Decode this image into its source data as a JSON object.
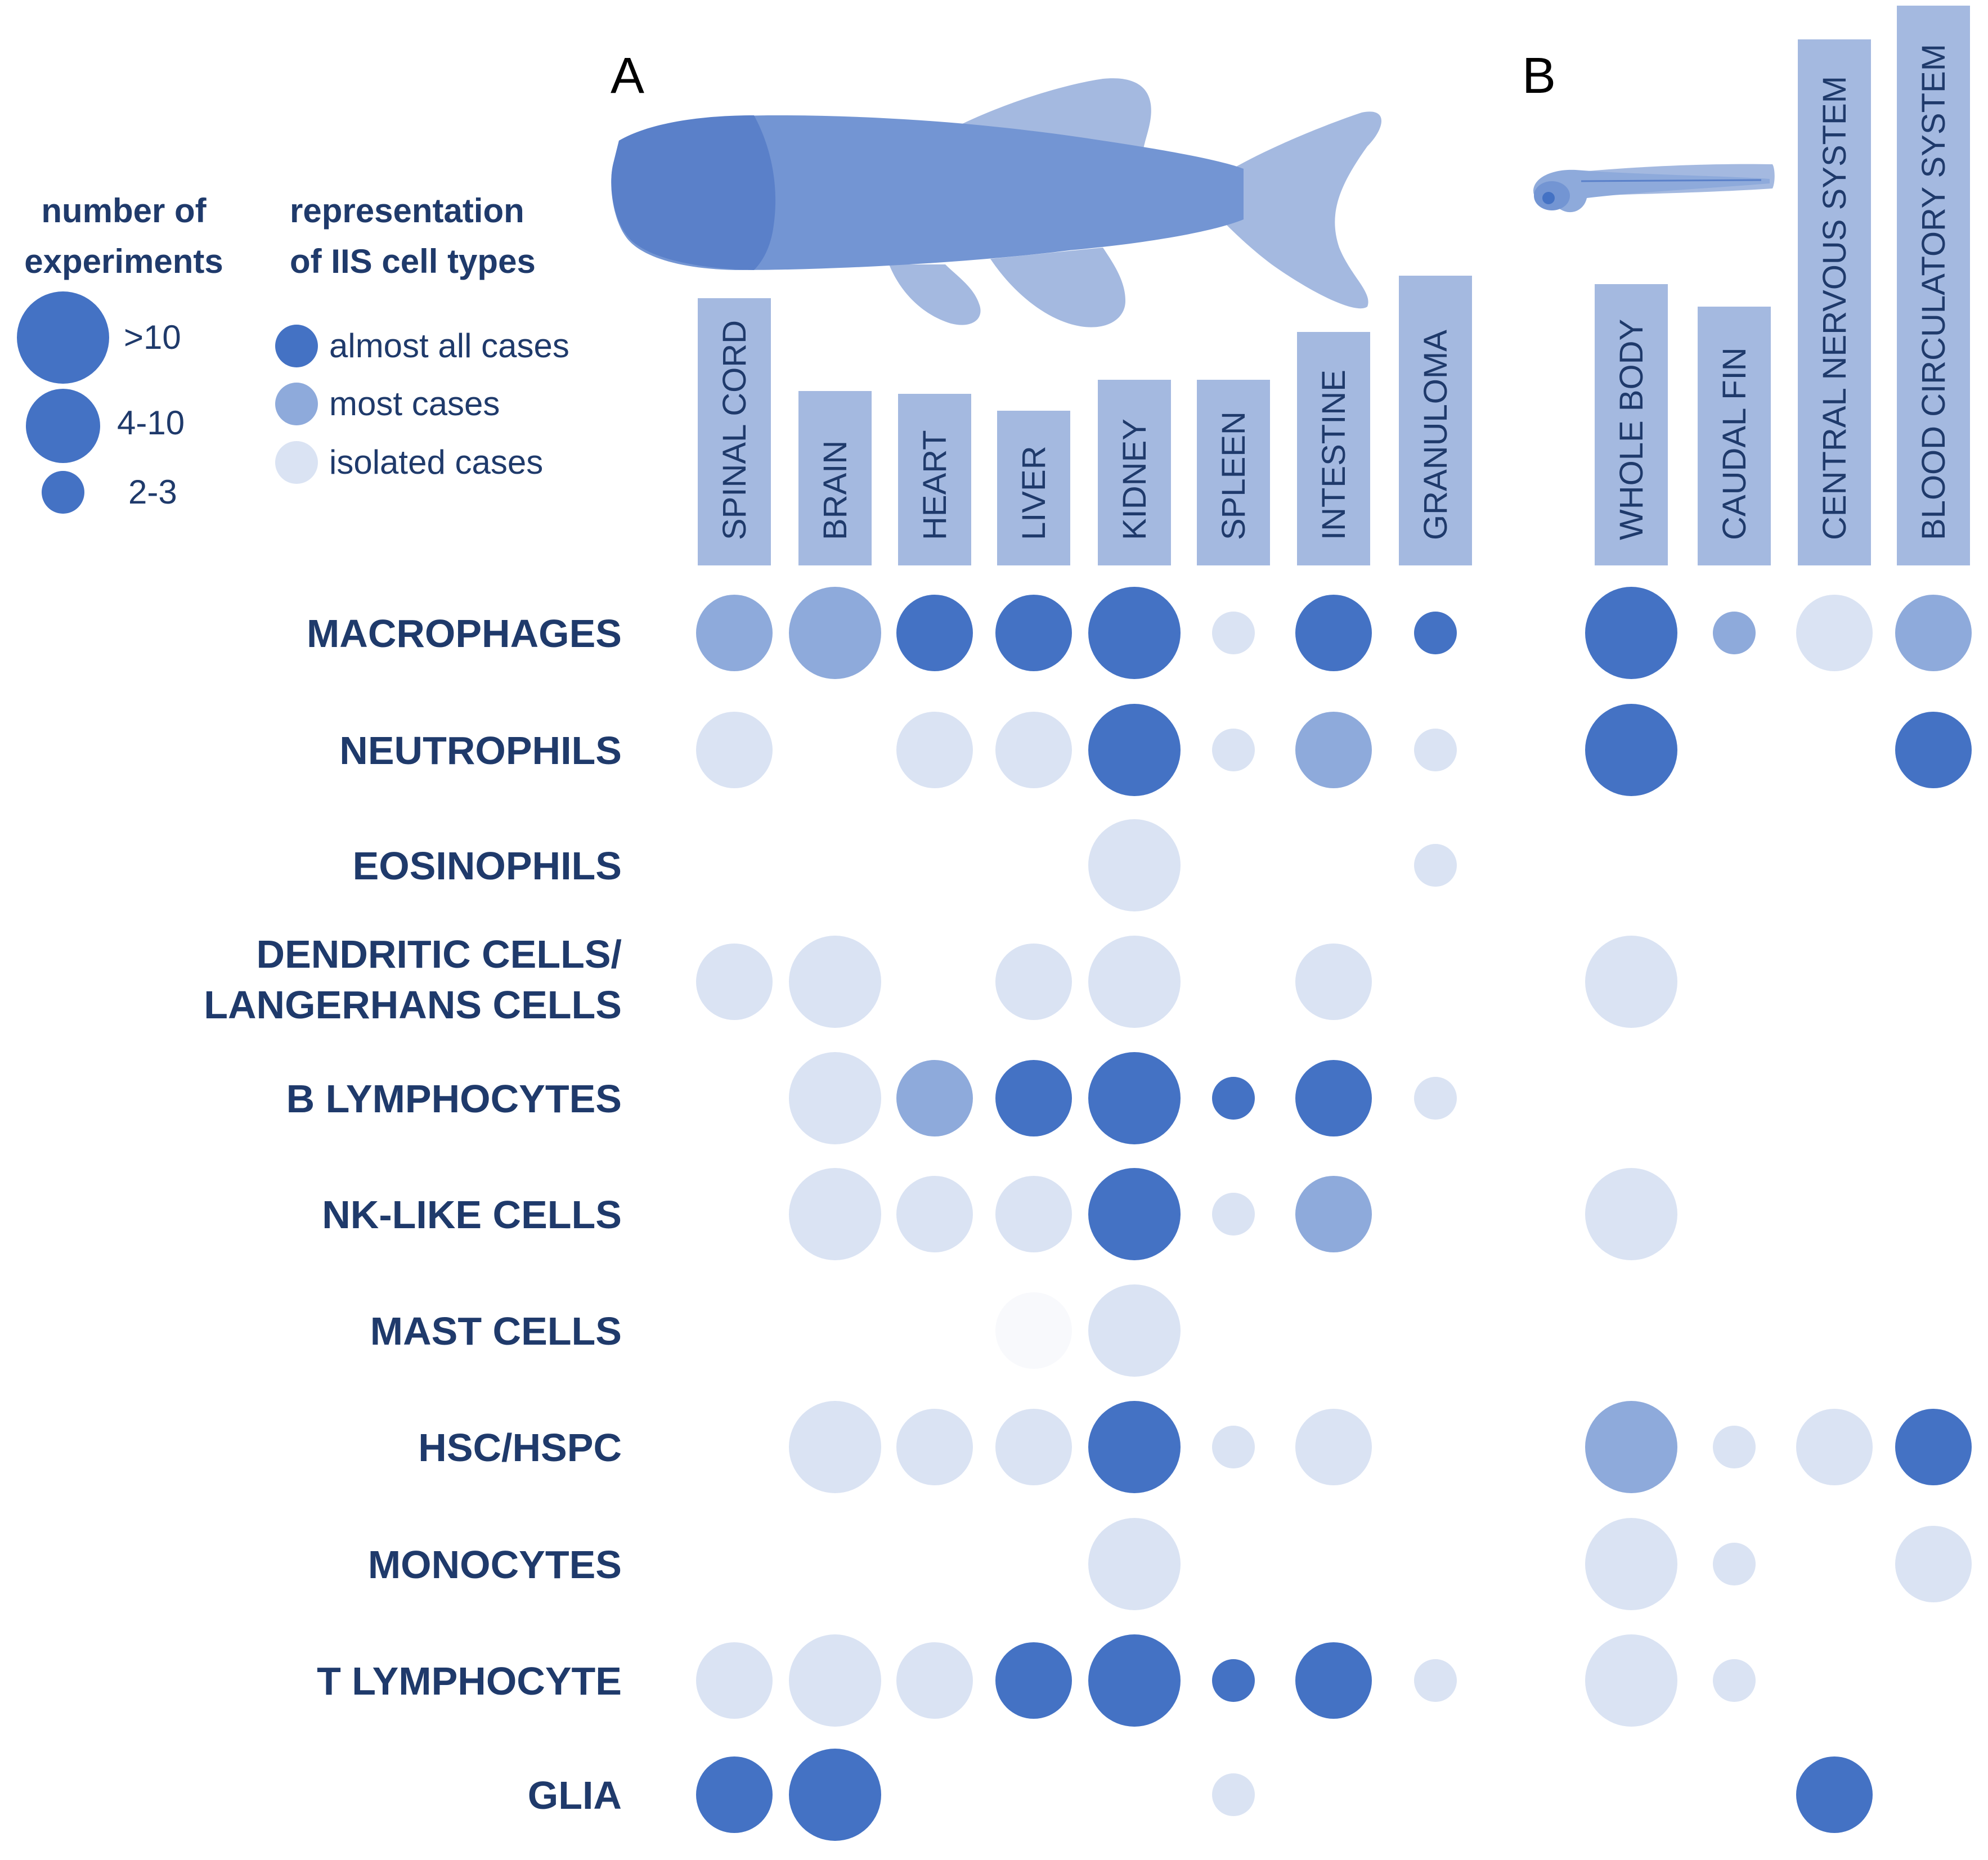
{
  "chart_data": {
    "type": "bubble-matrix",
    "title": "",
    "panels": [
      {
        "letter": "A",
        "columns": [
          "SPINAL CORD",
          "BRAIN",
          "HEART",
          "LIVER",
          "KIDNEY",
          "SPLEEN",
          "INTESTINE",
          "GRANULOMA"
        ]
      },
      {
        "letter": "B",
        "columns": [
          "WHOLE BODY",
          "CAUDAL FIN",
          "CENTRAL NERVOUS SYSTEM",
          "BLOOD CIRCULATORY SYSTEM"
        ]
      }
    ],
    "rows": [
      [
        "MACROPHAGES"
      ],
      [
        "NEUTROPHILS"
      ],
      [
        "EOSINOPHILS"
      ],
      [
        "DENDRITIC CELLS/",
        "LANGERHANS CELLS"
      ],
      [
        "B LYMPHOCYTES"
      ],
      [
        "NK-LIKE CELLS"
      ],
      [
        "MAST CELLS"
      ],
      [
        "HSC/HSPC"
      ],
      [
        "MONOCYTES"
      ],
      [
        "T LYMPHOCYTE"
      ],
      [
        "GLIA"
      ]
    ],
    "column_bar_heights": [
      95,
      62,
      61,
      55,
      66,
      66,
      83,
      103,
      100,
      92,
      187,
      199
    ],
    "size_legend": {
      "title": [
        "number of",
        "experiments"
      ],
      "items": [
        {
          "label": ">10",
          "size": 3
        },
        {
          "label": "4-10",
          "size": 2
        },
        {
          "label": "2-3",
          "size": 1
        }
      ]
    },
    "shade_legend": {
      "title": [
        "representation",
        "of IIS cell types"
      ],
      "items": [
        {
          "label": "almost all cases",
          "shade": 3
        },
        {
          "label": "most cases",
          "shade": 2
        },
        {
          "label": "isolated cases",
          "shade": 1
        }
      ]
    },
    "colors": {
      "shade3": "#4472c4",
      "shade2": "#8eaadb",
      "shade1": "#dae3f3",
      "shade0": "#f8f9fc",
      "bar": "#a4b9e0",
      "text": "#1f3a6b",
      "fish_dark": "#5a80c9",
      "fish_mid": "#7395d3",
      "fish_light": "#a4b9e0"
    },
    "cells": [
      {
        "row": 0,
        "col": 0,
        "size": 2,
        "shade": 2
      },
      {
        "row": 0,
        "col": 1,
        "size": 3,
        "shade": 2
      },
      {
        "row": 0,
        "col": 2,
        "size": 2,
        "shade": 3
      },
      {
        "row": 0,
        "col": 3,
        "size": 2,
        "shade": 3
      },
      {
        "row": 0,
        "col": 4,
        "size": 3,
        "shade": 3
      },
      {
        "row": 0,
        "col": 5,
        "size": 1,
        "shade": 1
      },
      {
        "row": 0,
        "col": 6,
        "size": 2,
        "shade": 3
      },
      {
        "row": 0,
        "col": 7,
        "size": 1,
        "shade": 3
      },
      {
        "row": 0,
        "col": 8,
        "size": 3,
        "shade": 3
      },
      {
        "row": 0,
        "col": 9,
        "size": 1,
        "shade": 2
      },
      {
        "row": 0,
        "col": 10,
        "size": 2,
        "shade": 1
      },
      {
        "row": 0,
        "col": 11,
        "size": 2,
        "shade": 2
      },
      {
        "row": 1,
        "col": 0,
        "size": 2,
        "shade": 1
      },
      {
        "row": 1,
        "col": 2,
        "size": 2,
        "shade": 1
      },
      {
        "row": 1,
        "col": 3,
        "size": 2,
        "shade": 1
      },
      {
        "row": 1,
        "col": 4,
        "size": 3,
        "shade": 3
      },
      {
        "row": 1,
        "col": 5,
        "size": 1,
        "shade": 1
      },
      {
        "row": 1,
        "col": 6,
        "size": 2,
        "shade": 2
      },
      {
        "row": 1,
        "col": 7,
        "size": 1,
        "shade": 1
      },
      {
        "row": 1,
        "col": 8,
        "size": 3,
        "shade": 3
      },
      {
        "row": 1,
        "col": 11,
        "size": 2,
        "shade": 3
      },
      {
        "row": 2,
        "col": 4,
        "size": 3,
        "shade": 1
      },
      {
        "row": 2,
        "col": 7,
        "size": 1,
        "shade": 1
      },
      {
        "row": 3,
        "col": 0,
        "size": 2,
        "shade": 1
      },
      {
        "row": 3,
        "col": 1,
        "size": 3,
        "shade": 1
      },
      {
        "row": 3,
        "col": 3,
        "size": 2,
        "shade": 1
      },
      {
        "row": 3,
        "col": 4,
        "size": 3,
        "shade": 1
      },
      {
        "row": 3,
        "col": 6,
        "size": 2,
        "shade": 1
      },
      {
        "row": 3,
        "col": 8,
        "size": 3,
        "shade": 1
      },
      {
        "row": 4,
        "col": 1,
        "size": 3,
        "shade": 1
      },
      {
        "row": 4,
        "col": 2,
        "size": 2,
        "shade": 2
      },
      {
        "row": 4,
        "col": 3,
        "size": 2,
        "shade": 3
      },
      {
        "row": 4,
        "col": 4,
        "size": 3,
        "shade": 3
      },
      {
        "row": 4,
        "col": 5,
        "size": 1,
        "shade": 3
      },
      {
        "row": 4,
        "col": 6,
        "size": 2,
        "shade": 3
      },
      {
        "row": 4,
        "col": 7,
        "size": 1,
        "shade": 1
      },
      {
        "row": 5,
        "col": 1,
        "size": 3,
        "shade": 1
      },
      {
        "row": 5,
        "col": 2,
        "size": 2,
        "shade": 1
      },
      {
        "row": 5,
        "col": 3,
        "size": 2,
        "shade": 1
      },
      {
        "row": 5,
        "col": 4,
        "size": 3,
        "shade": 3
      },
      {
        "row": 5,
        "col": 5,
        "size": 1,
        "shade": 1
      },
      {
        "row": 5,
        "col": 6,
        "size": 2,
        "shade": 2
      },
      {
        "row": 5,
        "col": 8,
        "size": 3,
        "shade": 1
      },
      {
        "row": 6,
        "col": 3,
        "size": 2,
        "shade": 0
      },
      {
        "row": 6,
        "col": 4,
        "size": 3,
        "shade": 1
      },
      {
        "row": 7,
        "col": 1,
        "size": 3,
        "shade": 1
      },
      {
        "row": 7,
        "col": 2,
        "size": 2,
        "shade": 1
      },
      {
        "row": 7,
        "col": 3,
        "size": 2,
        "shade": 1
      },
      {
        "row": 7,
        "col": 4,
        "size": 3,
        "shade": 3
      },
      {
        "row": 7,
        "col": 5,
        "size": 1,
        "shade": 1
      },
      {
        "row": 7,
        "col": 6,
        "size": 2,
        "shade": 1
      },
      {
        "row": 7,
        "col": 8,
        "size": 3,
        "shade": 2
      },
      {
        "row": 7,
        "col": 9,
        "size": 1,
        "shade": 1
      },
      {
        "row": 7,
        "col": 10,
        "size": 2,
        "shade": 1
      },
      {
        "row": 7,
        "col": 11,
        "size": 2,
        "shade": 3
      },
      {
        "row": 8,
        "col": 4,
        "size": 3,
        "shade": 1
      },
      {
        "row": 8,
        "col": 8,
        "size": 3,
        "shade": 1
      },
      {
        "row": 8,
        "col": 9,
        "size": 1,
        "shade": 1
      },
      {
        "row": 8,
        "col": 11,
        "size": 2,
        "shade": 1
      },
      {
        "row": 9,
        "col": 0,
        "size": 2,
        "shade": 1
      },
      {
        "row": 9,
        "col": 1,
        "size": 3,
        "shade": 1
      },
      {
        "row": 9,
        "col": 2,
        "size": 2,
        "shade": 1
      },
      {
        "row": 9,
        "col": 3,
        "size": 2,
        "shade": 3
      },
      {
        "row": 9,
        "col": 4,
        "size": 3,
        "shade": 3
      },
      {
        "row": 9,
        "col": 5,
        "size": 1,
        "shade": 3
      },
      {
        "row": 9,
        "col": 6,
        "size": 2,
        "shade": 3
      },
      {
        "row": 9,
        "col": 7,
        "size": 1,
        "shade": 1
      },
      {
        "row": 9,
        "col": 8,
        "size": 3,
        "shade": 1
      },
      {
        "row": 9,
        "col": 9,
        "size": 1,
        "shade": 1
      },
      {
        "row": 10,
        "col": 0,
        "size": 2,
        "shade": 3
      },
      {
        "row": 10,
        "col": 1,
        "size": 3,
        "shade": 3
      },
      {
        "row": 10,
        "col": 5,
        "size": 1,
        "shade": 1
      },
      {
        "row": 10,
        "col": 10,
        "size": 2,
        "shade": 3
      }
    ]
  }
}
